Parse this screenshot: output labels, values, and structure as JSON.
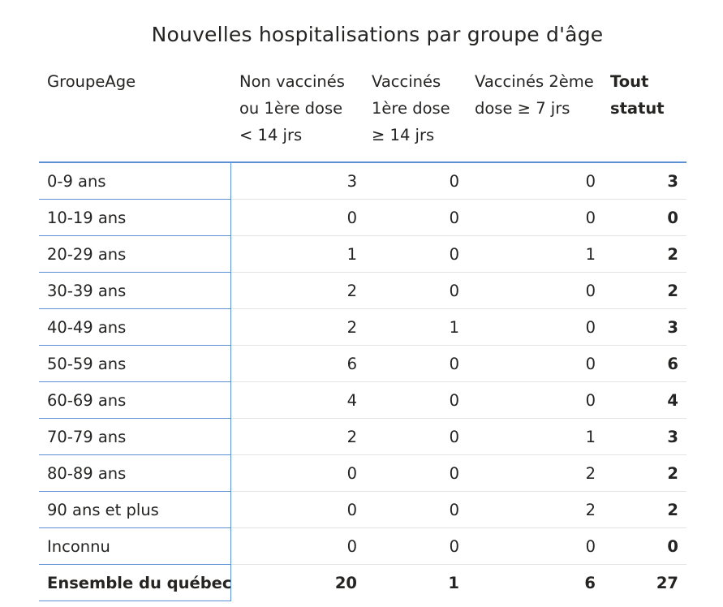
{
  "chart_data": {
    "type": "table",
    "title": "Nouvelles hospitalisations par groupe d'âge",
    "columns": [
      {
        "key": "group",
        "lines": [
          "GroupeAge"
        ]
      },
      {
        "key": "nonvax",
        "lines": [
          "Non vaccinés",
          "ou 1ère dose",
          "< 14 jrs"
        ]
      },
      {
        "key": "dose1",
        "lines": [
          "Vaccinés",
          "1ère dose",
          "≥ 14 jrs"
        ]
      },
      {
        "key": "dose2",
        "lines": [
          "Vaccinés 2ème",
          "dose ≥ 7 jrs"
        ]
      },
      {
        "key": "total",
        "lines": [
          "Tout",
          "statut"
        ]
      }
    ],
    "rows": [
      {
        "group": "0-9 ans",
        "values": [
          3,
          0,
          0,
          3
        ]
      },
      {
        "group": "10-19 ans",
        "values": [
          0,
          0,
          0,
          0
        ]
      },
      {
        "group": "20-29 ans",
        "values": [
          1,
          0,
          1,
          2
        ]
      },
      {
        "group": "30-39 ans",
        "values": [
          2,
          0,
          0,
          2
        ]
      },
      {
        "group": "40-49 ans",
        "values": [
          2,
          1,
          0,
          3
        ]
      },
      {
        "group": "50-59 ans",
        "values": [
          6,
          0,
          0,
          6
        ]
      },
      {
        "group": "60-69 ans",
        "values": [
          4,
          0,
          0,
          4
        ]
      },
      {
        "group": "70-79 ans",
        "values": [
          2,
          0,
          1,
          3
        ]
      },
      {
        "group": "80-89 ans",
        "values": [
          0,
          0,
          2,
          2
        ]
      },
      {
        "group": "90 ans et plus",
        "values": [
          0,
          0,
          2,
          2
        ]
      },
      {
        "group": "Inconnu",
        "values": [
          0,
          0,
          0,
          0
        ]
      }
    ],
    "total": {
      "group": "Ensemble du québec",
      "values": [
        20,
        1,
        6,
        27
      ]
    }
  },
  "colors": {
    "text": "#252423",
    "accent_border": "#5b8fd6",
    "row_divider": "#e3e3e3",
    "background": "#ffffff"
  }
}
